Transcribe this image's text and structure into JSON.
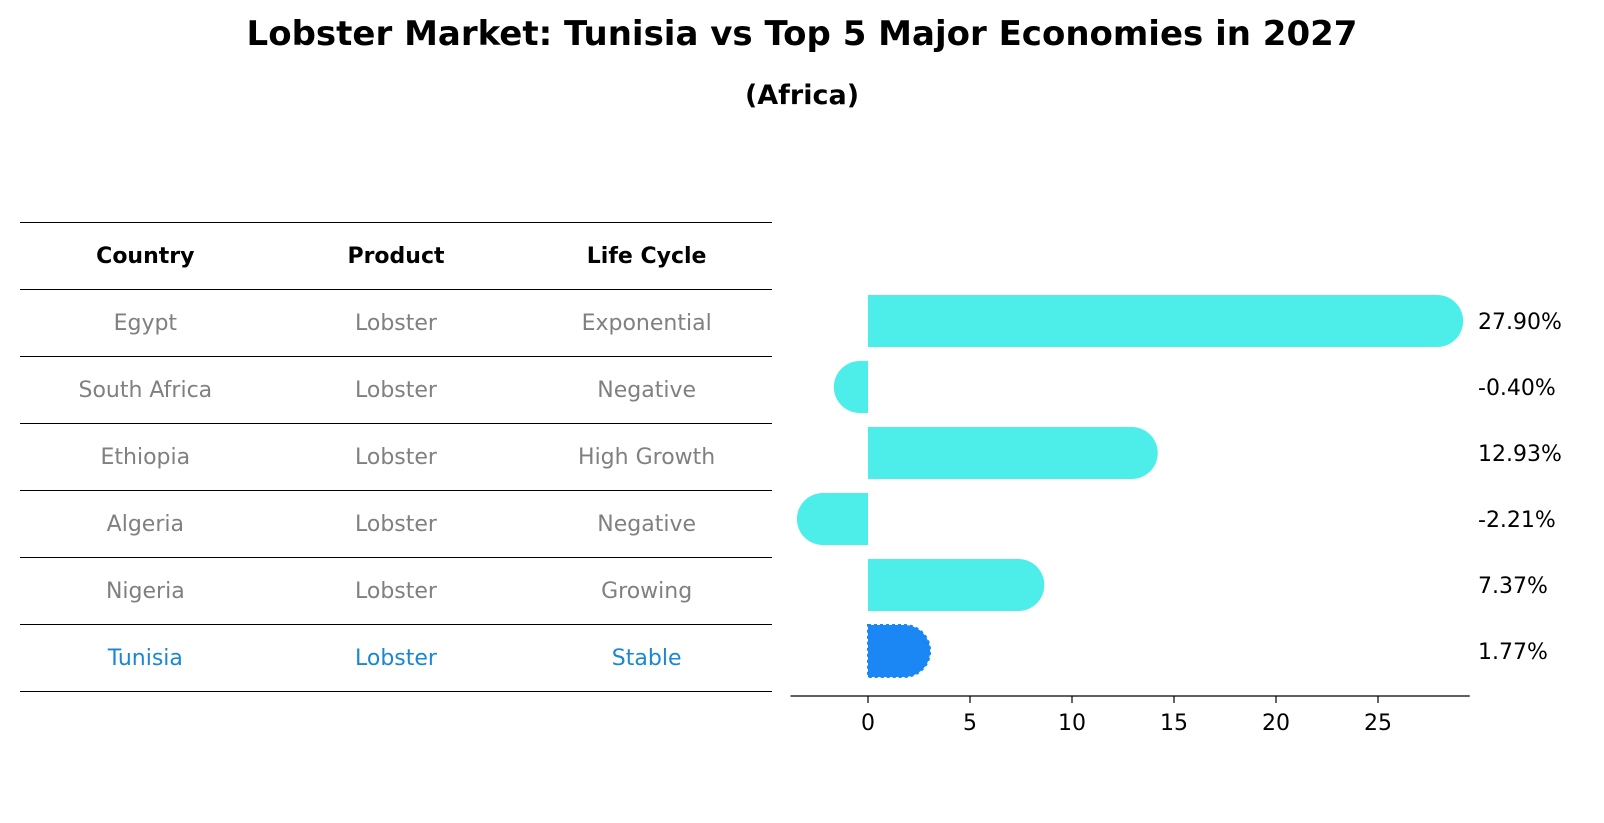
{
  "chart_data": {
    "type": "bar",
    "title": "Lobster Market: Tunisia vs Top 5 Major Economies in 2027",
    "subtitle": "(Africa)",
    "table": {
      "columns": [
        "Country",
        "Product",
        "Life Cycle"
      ],
      "rows": [
        {
          "country": "Egypt",
          "product": "Lobster",
          "life_cycle": "Exponential"
        },
        {
          "country": "South Africa",
          "product": "Lobster",
          "life_cycle": "Negative"
        },
        {
          "country": "Ethiopia",
          "product": "Lobster",
          "life_cycle": "High Growth"
        },
        {
          "country": "Algeria",
          "product": "Lobster",
          "life_cycle": "Negative"
        },
        {
          "country": "Nigeria",
          "product": "Lobster",
          "life_cycle": "Growing"
        },
        {
          "country": "Tunisia",
          "product": "Lobster",
          "life_cycle": "Stable"
        }
      ],
      "highlight_row": 5
    },
    "categories": [
      "Egypt",
      "South Africa",
      "Ethiopia",
      "Algeria",
      "Nigeria",
      "Tunisia"
    ],
    "values": [
      27.9,
      -0.4,
      12.93,
      -2.21,
      7.37,
      1.77
    ],
    "value_labels": [
      "27.90%",
      "-0.40%",
      "12.93%",
      "-2.21%",
      "7.37%",
      "1.77%"
    ],
    "xticks": [
      0,
      5,
      10,
      15,
      20,
      25
    ],
    "xlim": [
      -3.8,
      29.5
    ],
    "colors": {
      "bar": "#4deeea",
      "highlight": "#1a87f5",
      "highlight_text": "#1a87d4",
      "muted_text": "#808080"
    }
  }
}
